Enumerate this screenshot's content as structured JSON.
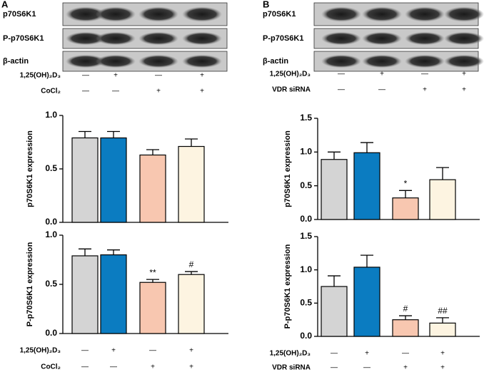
{
  "panels": [
    "A",
    "B"
  ],
  "blots": [
    {
      "rows": [
        "p70S6K1",
        "P-p70S6K1",
        "β-actin"
      ],
      "conditions": [
        {
          "name": "1,25(OH)₂D₃",
          "signs": [
            "—",
            "+",
            "—",
            "+"
          ]
        },
        {
          "name": "CoCl₂",
          "signs": [
            "—",
            "—",
            "+",
            "+"
          ]
        }
      ]
    },
    {
      "rows": [
        "p70S6K1",
        "P-p70S6K1",
        "β-actin"
      ],
      "conditions": [
        {
          "name": "1,25(OH)₂D₃",
          "signs": [
            "—",
            "+",
            "—",
            "+"
          ]
        },
        {
          "name": "VDR siRNA",
          "signs": [
            "—",
            "—",
            "+",
            "+"
          ]
        }
      ]
    }
  ],
  "chart_data": [
    {
      "type": "bar",
      "ylabel": "p70S6K1 expression",
      "values": [
        0.79,
        0.79,
        0.63,
        0.71
      ],
      "errors": [
        0.06,
        0.06,
        0.05,
        0.07
      ],
      "colors": [
        "#d4d4d4",
        "#0b7cc1",
        "#f8c7b0",
        "#fdf4e1"
      ],
      "ylim": [
        0,
        1
      ],
      "yticks": [
        {
          "value": 0,
          "label": "0.0"
        },
        {
          "value": 0.5,
          "label": "0.5"
        },
        {
          "value": 1,
          "label": "1.0"
        }
      ]
    },
    {
      "type": "bar",
      "ylabel": "P-p70S6K1 expression",
      "values": [
        0.79,
        0.8,
        0.52,
        0.6
      ],
      "errors": [
        0.07,
        0.05,
        0.03,
        0.03
      ],
      "colors": [
        "#d4d4d4",
        "#0b7cc1",
        "#f8c7b0",
        "#fdf4e1"
      ],
      "ylim": [
        0,
        1
      ],
      "yticks": [
        {
          "value": 0,
          "label": "0.0"
        },
        {
          "value": 0.5,
          "label": "0.5"
        },
        {
          "value": 1,
          "label": "1.0"
        }
      ],
      "annotations": [
        {
          "index": 2,
          "text": "**"
        },
        {
          "index": 3,
          "text": "#"
        }
      ],
      "conditions": [
        {
          "name": "1,25(OH)₂D₃",
          "signs": [
            "—",
            "+",
            "—",
            "+"
          ]
        },
        {
          "name": "CoCl₂",
          "signs": [
            "—",
            "—",
            "+",
            "+"
          ]
        }
      ]
    },
    {
      "type": "bar",
      "ylabel": "p70S6K1 expression",
      "values": [
        0.89,
        0.99,
        0.32,
        0.59
      ],
      "errors": [
        0.11,
        0.15,
        0.11,
        0.18
      ],
      "colors": [
        "#d4d4d4",
        "#0b7cc1",
        "#f8c7b0",
        "#fdf4e1"
      ],
      "ylim": [
        0,
        1.5
      ],
      "yticks": [
        {
          "value": 0,
          "label": "0.0"
        },
        {
          "value": 0.5,
          "label": "0.5"
        },
        {
          "value": 1,
          "label": "1.0"
        },
        {
          "value": 1.5,
          "label": "1.5"
        }
      ],
      "annotations": [
        {
          "index": 2,
          "text": "*"
        }
      ]
    },
    {
      "type": "bar",
      "ylabel": "P-p70S6K1 expression",
      "values": [
        0.75,
        1.04,
        0.25,
        0.2
      ],
      "errors": [
        0.16,
        0.18,
        0.06,
        0.08
      ],
      "colors": [
        "#d4d4d4",
        "#0b7cc1",
        "#f8c7b0",
        "#fdf4e1"
      ],
      "ylim": [
        0,
        1.5
      ],
      "yticks": [
        {
          "value": 0,
          "label": "0.0"
        },
        {
          "value": 0.5,
          "label": "0.5"
        },
        {
          "value": 1,
          "label": "1.0"
        },
        {
          "value": 1.5,
          "label": "1.5"
        }
      ],
      "annotations": [
        {
          "index": 2,
          "text": "#"
        },
        {
          "index": 3,
          "text": "##"
        }
      ],
      "conditions": [
        {
          "name": "1,25(OH)₂D₃",
          "signs": [
            "—",
            "+",
            "—",
            "+"
          ]
        },
        {
          "name": "VDR siRNA",
          "signs": [
            "—",
            "—",
            "+",
            "+"
          ]
        }
      ]
    }
  ]
}
